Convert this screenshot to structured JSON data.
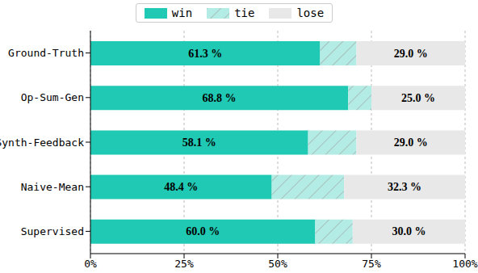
{
  "chart_data": {
    "type": "bar",
    "orientation": "horizontal",
    "stacked": true,
    "grid": true,
    "legend": "top",
    "data_labels": true,
    "categories": [
      "Ground-Truth",
      "Op-Sum-Gen",
      "Synth-Feedback",
      "Naive-Mean",
      "Supervised"
    ],
    "series": [
      {
        "name": "win",
        "color": "#20c9b3",
        "values": [
          61.3,
          68.8,
          58.1,
          48.4,
          60.0
        ],
        "value_labels": [
          "61.3 %",
          "68.8 %",
          "58.1 %",
          "48.4 %",
          "60.0 %"
        ]
      },
      {
        "name": "tie",
        "color": "#b3ece4",
        "values": [
          9.7,
          6.2,
          12.9,
          19.3,
          10.0
        ]
      },
      {
        "name": "lose",
        "color": "#e8e8e8",
        "values": [
          29.0,
          25.0,
          29.0,
          32.3,
          30.0
        ],
        "value_labels": [
          "29.0 %",
          "25.0 %",
          "29.0 %",
          "32.3 %",
          "30.0 %"
        ]
      }
    ],
    "xlim": [
      0,
      100
    ],
    "xticks": [
      {
        "value": 0,
        "label": "0%"
      },
      {
        "value": 25,
        "label": "25%"
      },
      {
        "value": 50,
        "label": "50%"
      },
      {
        "value": 75,
        "label": "75%"
      },
      {
        "value": 100,
        "label": "100%"
      }
    ]
  }
}
